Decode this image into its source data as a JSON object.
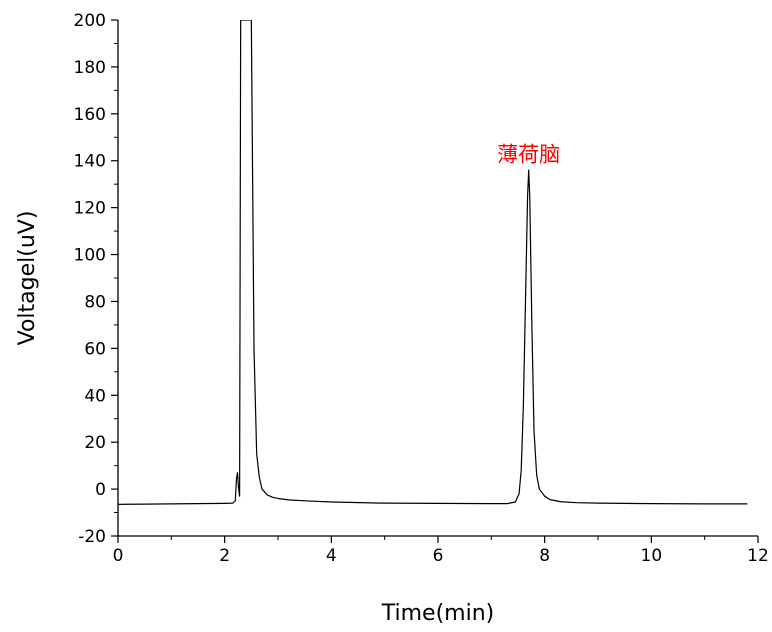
{
  "chart_data": {
    "type": "line",
    "title": "",
    "xlabel": "Time(min)",
    "ylabel": "Voltagel(uV)",
    "xlim": [
      0,
      12
    ],
    "ylim": [
      -20,
      200
    ],
    "xticks": [
      0,
      2,
      4,
      6,
      8,
      10,
      12
    ],
    "yticks": [
      -20,
      0,
      20,
      40,
      60,
      80,
      100,
      120,
      140,
      160,
      180,
      200
    ],
    "grid": false,
    "legend": "none",
    "line_color": "#000000",
    "annotation_color": "#ff0000",
    "annotations": [
      {
        "text": "薄荷脑",
        "x": 7.7,
        "y": 143
      }
    ],
    "series": [
      {
        "x": [
          0,
          0.5,
          1.0,
          1.5,
          2.0,
          2.15,
          2.2,
          2.22,
          2.24,
          2.26,
          2.28,
          2.3,
          2.32,
          2.34,
          2.36,
          2.38,
          2.4,
          2.42,
          2.44,
          2.46,
          2.48,
          2.5,
          2.55,
          2.6,
          2.65,
          2.7,
          2.8,
          2.9,
          3.0,
          3.2,
          3.5,
          4.0,
          5.0,
          6.0,
          7.0,
          7.3,
          7.45,
          7.52,
          7.56,
          7.6,
          7.64,
          7.68,
          7.7,
          7.72,
          7.76,
          7.8,
          7.85,
          7.9,
          8.0,
          8.1,
          8.3,
          8.6,
          9.0,
          10.0,
          11.0,
          11.8
        ],
        "y": [
          -6.5,
          -6.4,
          -6.3,
          -6.2,
          -6.1,
          -6.0,
          -5.0,
          4.0,
          7.0,
          0.5,
          -3.0,
          200,
          200,
          200,
          200,
          200,
          200,
          200,
          200,
          200,
          200,
          200,
          60,
          15,
          5,
          0,
          -2.5,
          -3.5,
          -4.0,
          -4.6,
          -5.0,
          -5.5,
          -6.0,
          -6.1,
          -6.2,
          -6.2,
          -5.5,
          -2.0,
          8.0,
          35.0,
          80.0,
          125.0,
          136.0,
          125.0,
          70.0,
          25.0,
          6.0,
          0.0,
          -3.0,
          -4.5,
          -5.4,
          -5.8,
          -6.0,
          -6.2,
          -6.3,
          -6.3
        ]
      }
    ]
  }
}
